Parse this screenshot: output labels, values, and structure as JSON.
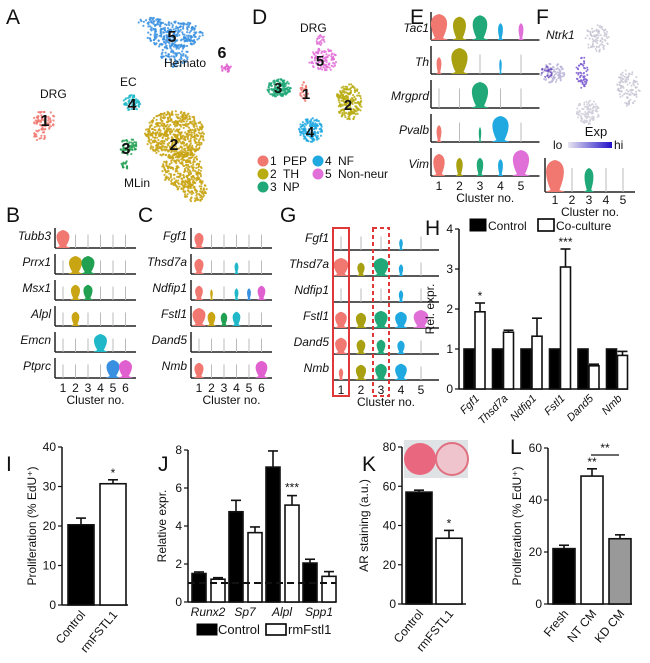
{
  "panels": {
    "A": {
      "letter": "A",
      "labels": {
        "drg": "DRG",
        "ec": "EC",
        "hemato": "Hemato",
        "mlin": "MLin"
      },
      "clusters": [
        {
          "id": "1",
          "color": "#f07870"
        },
        {
          "id": "2",
          "color": "#c9a514"
        },
        {
          "id": "3",
          "color": "#20a050"
        },
        {
          "id": "4",
          "color": "#20b8c8"
        },
        {
          "id": "5",
          "color": "#3a90e0"
        },
        {
          "id": "6",
          "color": "#e060d0"
        }
      ]
    },
    "B": {
      "letter": "B",
      "genes": [
        "Tubb3",
        "Prrx1",
        "Msx1",
        "Alpl",
        "Emcn",
        "Ptprc"
      ],
      "clusters": [
        "1",
        "2",
        "3",
        "4",
        "5",
        "6"
      ],
      "colors": [
        "#f07870",
        "#c9a514",
        "#20a050",
        "#20b8c8",
        "#3a90e0",
        "#e060d0"
      ],
      "xlabel": "Cluster no.",
      "expression": [
        [
          1.0,
          0.05,
          0.05,
          0.05,
          0.05,
          0.05
        ],
        [
          0.05,
          1.0,
          1.0,
          0.05,
          0.05,
          0.05
        ],
        [
          0.05,
          0.7,
          0.7,
          0.05,
          0.05,
          0.05
        ],
        [
          0.05,
          0.6,
          0.05,
          0.05,
          0.05,
          0.05
        ],
        [
          0.05,
          0.05,
          0.05,
          1.0,
          0.05,
          0.05
        ],
        [
          0.05,
          0.05,
          0.05,
          0.05,
          1.0,
          1.0
        ]
      ]
    },
    "C": {
      "letter": "C",
      "genes": [
        "Fgf1",
        "Thsd7a",
        "Ndfip1",
        "Fstl1",
        "Dand5",
        "Nmb"
      ],
      "clusters": [
        "1",
        "2",
        "3",
        "4",
        "5",
        "6"
      ],
      "colors": [
        "#f07870",
        "#c9a514",
        "#20a050",
        "#20b8c8",
        "#3a90e0",
        "#e060d0"
      ],
      "xlabel": "Cluster no.",
      "expression": [
        [
          0.7,
          0.05,
          0.05,
          0.05,
          0.05,
          0.05
        ],
        [
          0.7,
          0.05,
          0.05,
          0.3,
          0.05,
          0.05
        ],
        [
          0.6,
          0.2,
          0.05,
          0.3,
          0.3,
          0.6
        ],
        [
          1.0,
          0.6,
          0.5,
          0.6,
          0.05,
          0.05
        ],
        [
          0.05,
          0.05,
          0.05,
          0.05,
          0.05,
          0.05
        ],
        [
          0.7,
          0.05,
          0.05,
          0.05,
          0.05,
          0.9
        ]
      ]
    },
    "D": {
      "letter": "D",
      "title": "DRG",
      "legend": [
        {
          "id": "1",
          "name": "PEP",
          "color": "#f07870"
        },
        {
          "id": "2",
          "name": "TH",
          "color": "#b8ac10"
        },
        {
          "id": "3",
          "name": "NP",
          "color": "#20a878"
        },
        {
          "id": "4",
          "name": "NF",
          "color": "#20a8e0"
        },
        {
          "id": "5",
          "name": "Non-neur",
          "color": "#e070d8"
        }
      ]
    },
    "E": {
      "letter": "E",
      "genes": [
        "Tac1",
        "Th",
        "Mrgprd",
        "Pvalb",
        "Vim"
      ],
      "clusters": [
        "1",
        "2",
        "3",
        "4",
        "5"
      ],
      "colors": [
        "#f07870",
        "#a8a010",
        "#20a878",
        "#20a8e0",
        "#e070d8"
      ],
      "xlabel": "Cluster no.",
      "expression": [
        [
          1.0,
          0.8,
          0.9,
          0.3,
          0.3
        ],
        [
          0.3,
          1.0,
          0.05,
          0.15,
          0.05
        ],
        [
          0.05,
          0.05,
          1.0,
          0.05,
          0.05
        ],
        [
          0.3,
          0.05,
          0.15,
          1.0,
          0.05
        ],
        [
          0.7,
          0.4,
          0.4,
          0.3,
          1.0
        ]
      ]
    },
    "F": {
      "letter": "F",
      "gene": "Ntrk1",
      "scale_title": "Exp",
      "scale_lo": "lo",
      "scale_hi": "hi",
      "clusters": [
        "1",
        "2",
        "3",
        "4",
        "5"
      ],
      "colors": [
        "#f07870",
        "#a8a010",
        "#20a878",
        "#20a8e0",
        "#e070d8"
      ],
      "expression": [
        1.0,
        0.05,
        0.5,
        0.05,
        0.05
      ],
      "xlabel": "Cluster no."
    },
    "G": {
      "letter": "G",
      "genes": [
        "Fgf1",
        "Thsd7a",
        "Ndfip1",
        "Fstl1",
        "Dand5",
        "Nmb"
      ],
      "clusters": [
        "1",
        "2",
        "3",
        "4",
        "5"
      ],
      "colors": [
        "#f07870",
        "#a8a010",
        "#20a878",
        "#20a8e0",
        "#e070d8"
      ],
      "xlabel": "Cluster no.",
      "highlight_solid": "1",
      "highlight_dashed": "3",
      "highlight_color": "#e03838",
      "expression": [
        [
          0.05,
          0.05,
          0.05,
          0.25,
          0.05
        ],
        [
          1.0,
          0.5,
          1.0,
          0.3,
          0.05
        ],
        [
          0.05,
          0.05,
          0.05,
          0.3,
          0.05
        ],
        [
          0.8,
          0.7,
          0.9,
          0.8,
          1.0
        ],
        [
          0.8,
          0.6,
          0.6,
          0.5,
          0.05
        ],
        [
          0.3,
          0.7,
          0.8,
          0.8,
          0.05
        ]
      ]
    }
  },
  "chart_data": [
    {
      "id": "H",
      "letter": "H",
      "type": "bar",
      "title": "",
      "ylabel": "Rel. expr.",
      "xlabel": "",
      "ylim": [
        0,
        4
      ],
      "yticks": [
        "0",
        "1",
        "2",
        "3",
        "4"
      ],
      "categories": [
        "Fgf1",
        "Thsd7a",
        "Ndfip1",
        "Fstl1",
        "Dand5",
        "Nmb"
      ],
      "legend": {
        "placement": "top",
        "entries": [
          "Control",
          "Co-culture"
        ]
      },
      "series": [
        {
          "name": "Control",
          "values": [
            1.0,
            1.0,
            1.0,
            1.0,
            1.0,
            1.0
          ],
          "errors": [
            0,
            0,
            0,
            0,
            0,
            0
          ],
          "fill": "#000000"
        },
        {
          "name": "Co-culture",
          "values": [
            1.93,
            1.42,
            1.32,
            3.05,
            0.58,
            0.84
          ],
          "errors": [
            0.22,
            0.05,
            0.45,
            0.45,
            0.04,
            0.1
          ],
          "fill": "#ffffff"
        }
      ],
      "annotations": [
        {
          "category": "Fgf1",
          "text": "*"
        },
        {
          "category": "Fstl1",
          "text": "***"
        }
      ]
    },
    {
      "id": "I",
      "letter": "I",
      "type": "bar",
      "ylabel": "Proliferation (% EdU⁺)",
      "ylim": [
        0,
        40
      ],
      "yticks": [
        "0",
        "10",
        "20",
        "30",
        "40"
      ],
      "categories": [
        "Control",
        "rmFSTL1"
      ],
      "values": [
        20.3,
        30.7
      ],
      "errors": [
        1.7,
        1.0
      ],
      "fills": [
        "#000000",
        "#ffffff"
      ],
      "annotations": [
        {
          "category": "rmFSTL1",
          "text": "*"
        }
      ]
    },
    {
      "id": "J",
      "letter": "J",
      "type": "bar",
      "ylabel": "Relative expr.",
      "ylim": [
        0,
        8
      ],
      "yticks": [
        "0",
        "2",
        "4",
        "6",
        "8"
      ],
      "categories": [
        "Runx2",
        "Sp7",
        "Alpl",
        "Spp1"
      ],
      "reference_line": 1,
      "legend": {
        "placement": "bottom",
        "entries": [
          "Control",
          "rmFstl1"
        ]
      },
      "series": [
        {
          "name": "Control",
          "values": [
            1.5,
            4.75,
            7.1,
            2.05
          ],
          "errors": [
            0.08,
            0.6,
            0.85,
            0.2
          ],
          "fill": "#000000"
        },
        {
          "name": "rmFstl1",
          "values": [
            1.2,
            3.65,
            5.1,
            1.35
          ],
          "errors": [
            0.08,
            0.3,
            0.5,
            0.25
          ],
          "fill": "#ffffff"
        }
      ],
      "annotations": [
        {
          "category": "Alpl",
          "series": "rmFstl1",
          "text": "***"
        }
      ]
    },
    {
      "id": "K",
      "letter": "K",
      "type": "bar",
      "ylabel": "AR staining (a.u.)",
      "ylim": [
        0,
        80
      ],
      "yticks": [
        "0",
        "20",
        "40",
        "60",
        "80"
      ],
      "categories": [
        "Control",
        "rmFSTL1"
      ],
      "values": [
        57,
        33.5
      ],
      "errors": [
        1.0,
        4.0
      ],
      "fills": [
        "#000000",
        "#ffffff"
      ],
      "annotations": [
        {
          "category": "rmFSTL1",
          "text": "*"
        }
      ],
      "inset": "alizarin red stained wells"
    },
    {
      "id": "L",
      "letter": "L",
      "type": "bar",
      "ylabel": "Proliferation (% EdU⁺)",
      "ylim": [
        0,
        60
      ],
      "yticks": [
        "0",
        "20",
        "40",
        "60"
      ],
      "categories": [
        "Fresh",
        "NT CM",
        "KD CM"
      ],
      "values": [
        21.3,
        49.2,
        25.1
      ],
      "errors": [
        1.3,
        2.8,
        1.5
      ],
      "fills": [
        "#000000",
        "#ffffff",
        "#999999"
      ],
      "annotations": [
        {
          "category": "NT CM",
          "text": "**"
        },
        {
          "between": [
            "NT CM",
            "KD CM"
          ],
          "text": "**"
        }
      ]
    }
  ]
}
